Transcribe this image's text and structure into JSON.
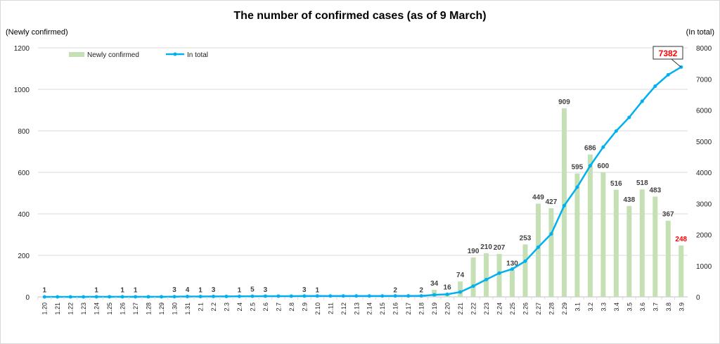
{
  "chart_data": {
    "type": "bar+line",
    "title": "The number of confirmed cases (as of 9 March)",
    "ylabel_left": "(Newly confirmed)",
    "ylabel_right": "(In total)",
    "ylim_left": [
      0,
      1200
    ],
    "yticks_left": [
      0,
      200,
      400,
      600,
      800,
      1000,
      1200
    ],
    "ylim_right": [
      0,
      8000
    ],
    "yticks_right": [
      0,
      1000,
      2000,
      3000,
      4000,
      5000,
      6000,
      7000,
      8000
    ],
    "grid": true,
    "legend_position": "top-left",
    "categories": [
      "1.20",
      "1.21",
      "1.22",
      "1.23",
      "1.24",
      "1.25",
      "1.26",
      "1.27",
      "1.28",
      "1.29",
      "1.30",
      "1.31",
      "2.1",
      "2.2",
      "2.3",
      "2.4",
      "2.5",
      "2.6",
      "2.7",
      "2.8",
      "2.9",
      "2.10",
      "2.11",
      "2.12",
      "2.13",
      "2.14",
      "2.15",
      "2.16",
      "2.17",
      "2.18",
      "2.19",
      "2.20",
      "2.21",
      "2.22",
      "2.23",
      "2.24",
      "2.25",
      "2.26",
      "2.27",
      "2.28",
      "2.29",
      "3.1",
      "3.2",
      "3.3",
      "3.4",
      "3.5",
      "3.6",
      "3.7",
      "3.8",
      "3.9"
    ],
    "series": [
      {
        "name": "Newly confirmed",
        "type": "bar",
        "axis": "left",
        "color": "#c5e0b4",
        "values": [
          1,
          0,
          0,
          0,
          1,
          0,
          1,
          1,
          0,
          0,
          3,
          4,
          1,
          3,
          0,
          1,
          5,
          3,
          0,
          0,
          3,
          1,
          0,
          0,
          0,
          0,
          0,
          2,
          0,
          2,
          34,
          16,
          74,
          190,
          210,
          207,
          130,
          253,
          449,
          427,
          909,
          595,
          686,
          600,
          516,
          438,
          518,
          483,
          367,
          248
        ]
      },
      {
        "name": "In total",
        "type": "line",
        "axis": "right",
        "color": "#00b0f0",
        "values": [
          1,
          1,
          1,
          1,
          2,
          2,
          3,
          4,
          4,
          4,
          7,
          11,
          12,
          15,
          15,
          16,
          21,
          24,
          24,
          24,
          27,
          28,
          28,
          28,
          28,
          28,
          28,
          30,
          30,
          32,
          66,
          82,
          156,
          346,
          556,
          763,
          893,
          1146,
          1595,
          2022,
          2931,
          3526,
          4212,
          4812,
          5328,
          5766,
          6284,
          6767,
          7134,
          7382
        ]
      }
    ],
    "annotation_total": "7382",
    "highlight_color": "#ff0000"
  }
}
